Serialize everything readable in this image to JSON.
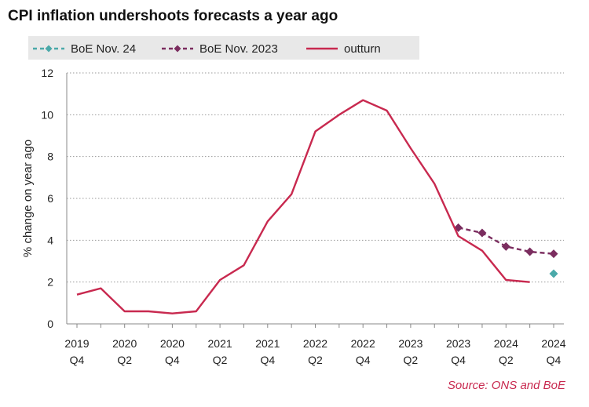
{
  "title": "CPI inflation undershoots forecasts a year ago",
  "source": "Source: ONS and BoE",
  "colors": {
    "outturn": "#c8294f",
    "boe2023": "#7b2d5f",
    "boe24": "#4aa9a9",
    "grid": "#9a9a9a"
  },
  "chart_data": {
    "type": "line",
    "title": "CPI inflation undershoots forecasts a year ago",
    "xlabel": "",
    "ylabel": "% change on year ago",
    "ylim": [
      0,
      12
    ],
    "yticks": [
      0,
      2,
      4,
      6,
      8,
      10,
      12
    ],
    "x": [
      "2019 Q4",
      "2020 Q1",
      "2020 Q2",
      "2020 Q3",
      "2020 Q4",
      "2021 Q1",
      "2021 Q2",
      "2021 Q3",
      "2021 Q4",
      "2022 Q1",
      "2022 Q2",
      "2022 Q3",
      "2022 Q4",
      "2023 Q1",
      "2023 Q2",
      "2023 Q3",
      "2023 Q4",
      "2024 Q1",
      "2024 Q2",
      "2024 Q3",
      "2024 Q4"
    ],
    "xtick_labels": [
      {
        "year": "2019",
        "q": "Q4",
        "index": 0
      },
      {
        "year": "2020",
        "q": "Q2",
        "index": 2
      },
      {
        "year": "2020",
        "q": "Q4",
        "index": 4
      },
      {
        "year": "2021",
        "q": "Q2",
        "index": 6
      },
      {
        "year": "2021",
        "q": "Q4",
        "index": 8
      },
      {
        "year": "2022",
        "q": "Q2",
        "index": 10
      },
      {
        "year": "2022",
        "q": "Q4",
        "index": 12
      },
      {
        "year": "2023",
        "q": "Q2",
        "index": 14
      },
      {
        "year": "2023",
        "q": "Q4",
        "index": 16
      },
      {
        "year": "2024",
        "q": "Q2",
        "index": 18
      },
      {
        "year": "2024",
        "q": "Q4",
        "index": 20
      }
    ],
    "legend_position": "top",
    "series": [
      {
        "name": "BoE Nov. 24",
        "style": "dashed-diamond",
        "color": "#4aa9a9",
        "points": [
          [
            20,
            2.4
          ]
        ]
      },
      {
        "name": "BoE Nov. 2023",
        "style": "dashed-diamond",
        "color": "#7b2d5f",
        "points": [
          [
            16,
            4.6
          ],
          [
            17,
            4.35
          ],
          [
            18,
            3.7
          ],
          [
            19,
            3.45
          ],
          [
            20,
            3.35
          ]
        ]
      },
      {
        "name": "outturn",
        "style": "solid",
        "color": "#c8294f",
        "points": [
          [
            0,
            1.4
          ],
          [
            1,
            1.7
          ],
          [
            2,
            0.6
          ],
          [
            3,
            0.6
          ],
          [
            4,
            0.5
          ],
          [
            5,
            0.6
          ],
          [
            6,
            2.1
          ],
          [
            7,
            2.8
          ],
          [
            8,
            4.9
          ],
          [
            9,
            6.2
          ],
          [
            10,
            9.2
          ],
          [
            11,
            10.0
          ],
          [
            12,
            10.7
          ],
          [
            13,
            10.2
          ],
          [
            14,
            8.4
          ],
          [
            15,
            6.7
          ],
          [
            16,
            4.2
          ],
          [
            17,
            3.5
          ],
          [
            18,
            2.1
          ],
          [
            19,
            2.0
          ]
        ]
      }
    ]
  }
}
